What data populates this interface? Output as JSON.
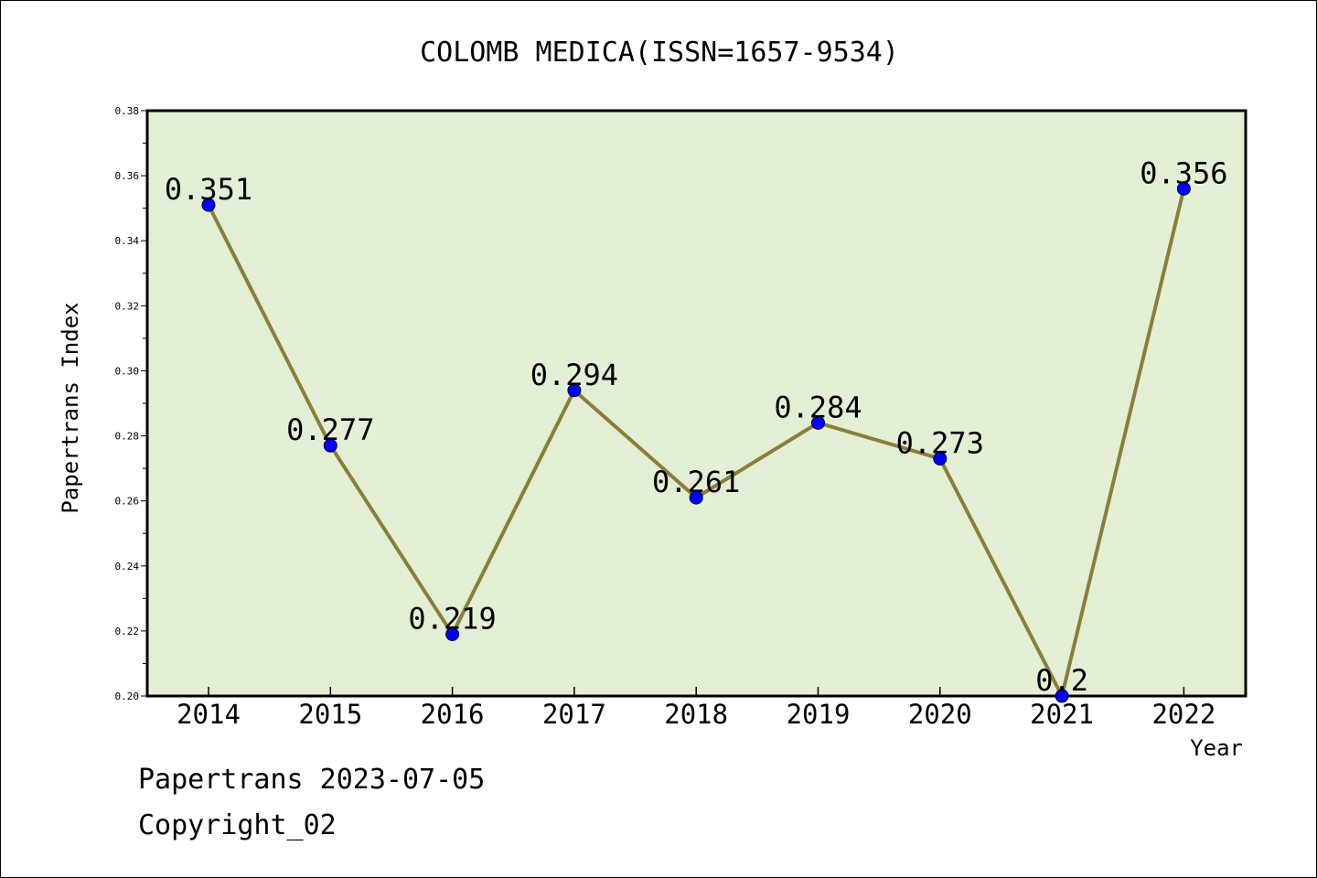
{
  "chart_data": {
    "type": "line",
    "title": "COLOMB MEDICA(ISSN=1657-9534)",
    "xlabel": "Year",
    "ylabel": "Papertrans Index",
    "categories": [
      "2014",
      "2015",
      "2016",
      "2017",
      "2018",
      "2019",
      "2020",
      "2021",
      "2022"
    ],
    "values": [
      0.351,
      0.277,
      0.219,
      0.294,
      0.261,
      0.284,
      0.273,
      0.2,
      0.356
    ],
    "data_labels": [
      "0.351",
      "0.277",
      "0.219",
      "0.294",
      "0.261",
      "0.284",
      "0.273",
      "0.2",
      "0.356"
    ],
    "ylim": [
      0.2,
      0.38
    ],
    "yticks": [
      "0.20",
      "0.22",
      "0.24",
      "0.26",
      "0.28",
      "0.30",
      "0.32",
      "0.34",
      "0.36",
      "0.38"
    ],
    "grid": false,
    "legend": "none",
    "colors": {
      "plot_background": "#e2efd5",
      "line": "#8b7d3a",
      "marker": "#0000ff"
    }
  },
  "footer": {
    "date_line": "Papertrans 2023-07-05",
    "copyright": "Copyright_02"
  }
}
